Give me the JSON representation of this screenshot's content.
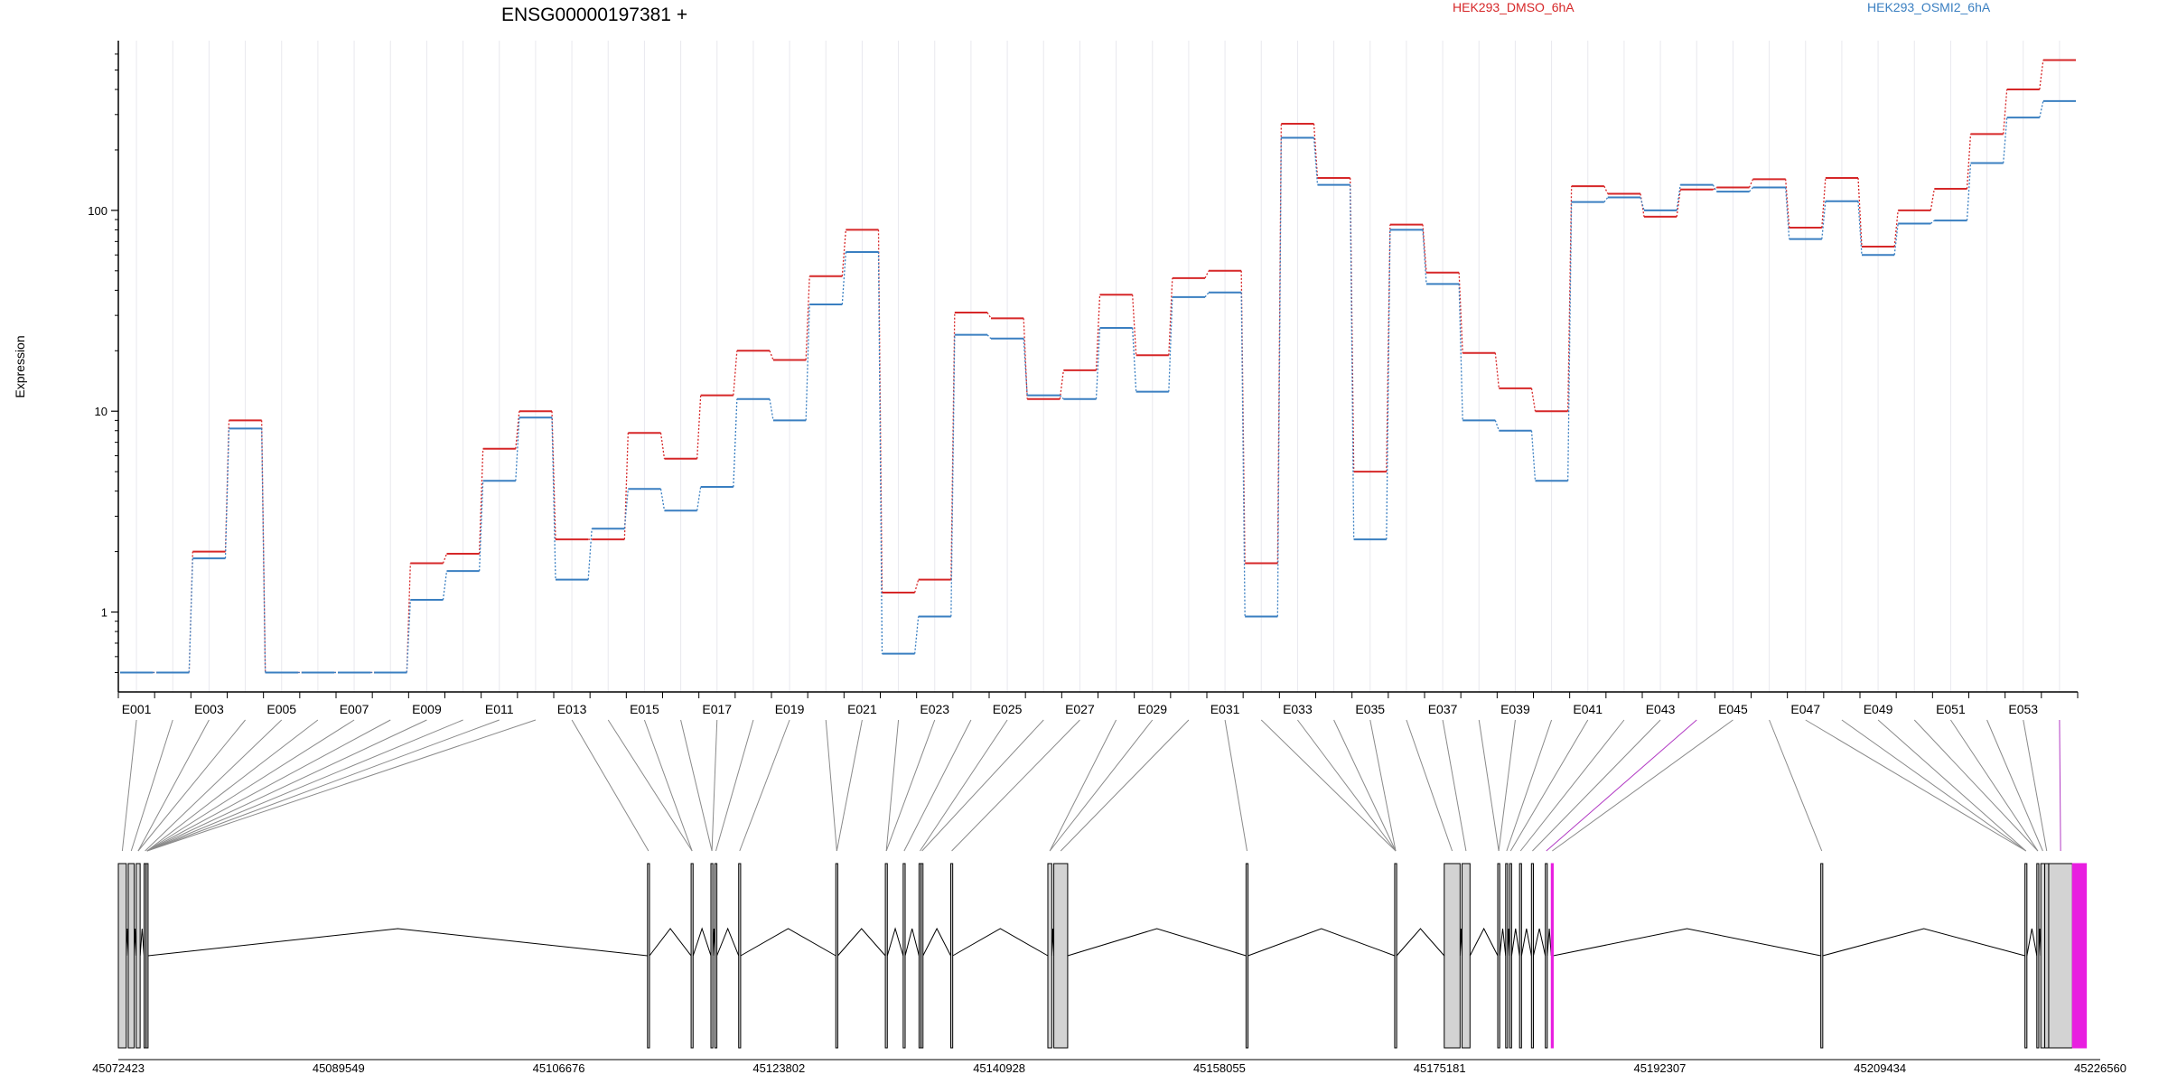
{
  "chart_data": {
    "type": "line",
    "title": "ENSG00000197381 +",
    "xlabel": "",
    "ylabel": "Expression",
    "y_scale": "log",
    "ylim": [
      0.4,
      700
    ],
    "y_ticks": [
      {
        "value": 1,
        "label": "1"
      },
      {
        "value": 10,
        "label": "10"
      },
      {
        "value": 100,
        "label": "100"
      }
    ],
    "grid": "vertical gridlines at each exon",
    "legend": "top-right, colored text",
    "exons": [
      "E001",
      "E002",
      "E003",
      "E004",
      "E005",
      "E006",
      "E007",
      "E008",
      "E009",
      "E010",
      "E011",
      "E012",
      "E013",
      "E014",
      "E015",
      "E016",
      "E017",
      "E018",
      "E019",
      "E020",
      "E021",
      "E022",
      "E023",
      "E024",
      "E025",
      "E026",
      "E027",
      "E028",
      "E029",
      "E030",
      "E031",
      "E032",
      "E033",
      "E034",
      "E035",
      "E036",
      "E037",
      "E038",
      "E039",
      "E040",
      "E041",
      "E042",
      "E043",
      "E044",
      "E045",
      "E046",
      "E047",
      "E048",
      "E049",
      "E050",
      "E051",
      "E052",
      "E053",
      "E054"
    ],
    "exon_labels": [
      "E001",
      "E003",
      "E005",
      "E007",
      "E009",
      "E011",
      "E013",
      "E015",
      "E017",
      "E019",
      "E021",
      "E023",
      "E025",
      "E027",
      "E029",
      "E031",
      "E033",
      "E035",
      "E037",
      "E039",
      "E041",
      "E043",
      "E045",
      "E047",
      "E049",
      "E051",
      "E053"
    ],
    "series": [
      {
        "name": "HEK293_DMSO_6hA",
        "color": "#d62728",
        "values": [
          0.5,
          0.5,
          2.0,
          9.0,
          0.5,
          0.5,
          0.5,
          0.5,
          1.75,
          1.95,
          6.5,
          10.0,
          2.3,
          2.3,
          7.8,
          5.8,
          12.0,
          20.0,
          18.0,
          47.0,
          80.0,
          1.25,
          1.45,
          31.0,
          29.0,
          11.5,
          16.0,
          38.0,
          19.0,
          46.0,
          50.0,
          1.75,
          270.0,
          145.0,
          5.0,
          85.0,
          49.0,
          19.5,
          13.0,
          10.0,
          132.0,
          121.0,
          93.0,
          127.0,
          130.0,
          143.0,
          82.0,
          145.0,
          66.0,
          100.0,
          128.0,
          240.0,
          400.0,
          560.0
        ]
      },
      {
        "name": "HEK293_OSMI2_6hA",
        "color": "#3a7fc1",
        "values": [
          0.5,
          0.5,
          1.85,
          8.2,
          0.5,
          0.5,
          0.5,
          0.5,
          1.15,
          1.6,
          4.5,
          9.3,
          1.45,
          2.6,
          4.1,
          3.2,
          4.2,
          11.5,
          9.0,
          34.0,
          62.0,
          0.62,
          0.95,
          24.0,
          23.0,
          12.0,
          11.5,
          26.0,
          12.5,
          37.0,
          39.0,
          0.95,
          230.0,
          134.0,
          2.3,
          80.0,
          43.0,
          9.0,
          8.0,
          4.5,
          110.0,
          116.0,
          100.0,
          134.0,
          124.0,
          130.0,
          72.0,
          111.0,
          60.0,
          86.0,
          89.0,
          172.0,
          290.0,
          350.0
        ]
      }
    ],
    "gene_model": {
      "coordinate_ticks": [
        "45072423",
        "45089549",
        "45106676",
        "45123802",
        "45140928",
        "45158055",
        "45175181",
        "45192307",
        "45209434",
        "45226560"
      ],
      "exon_blocks": [
        {
          "start": 0.0,
          "end": 0.004
        },
        {
          "start": 0.005,
          "end": 0.008
        },
        {
          "start": 0.009,
          "end": 0.011
        },
        {
          "start": 0.013,
          "end": 0.014
        },
        {
          "start": 0.014,
          "end": 0.015
        },
        {
          "start": 0.267,
          "end": 0.268
        },
        {
          "start": 0.289,
          "end": 0.29
        },
        {
          "start": 0.299,
          "end": 0.3
        },
        {
          "start": 0.301,
          "end": 0.302
        },
        {
          "start": 0.313,
          "end": 0.314
        },
        {
          "start": 0.362,
          "end": 0.363
        },
        {
          "start": 0.387,
          "end": 0.388
        },
        {
          "start": 0.396,
          "end": 0.397
        },
        {
          "start": 0.404,
          "end": 0.405
        },
        {
          "start": 0.405,
          "end": 0.406
        },
        {
          "start": 0.42,
          "end": 0.421
        },
        {
          "start": 0.469,
          "end": 0.471
        },
        {
          "start": 0.472,
          "end": 0.479
        },
        {
          "start": 0.569,
          "end": 0.57
        },
        {
          "start": 0.644,
          "end": 0.645
        },
        {
          "start": 0.669,
          "end": 0.677
        },
        {
          "start": 0.678,
          "end": 0.682
        },
        {
          "start": 0.696,
          "end": 0.697
        },
        {
          "start": 0.7,
          "end": 0.701
        },
        {
          "start": 0.702,
          "end": 0.703
        },
        {
          "start": 0.707,
          "end": 0.708
        },
        {
          "start": 0.713,
          "end": 0.714
        },
        {
          "start": 0.72,
          "end": 0.721
        },
        {
          "start": 0.723,
          "end": 0.724,
          "highlight": true
        },
        {
          "start": 0.859,
          "end": 0.86
        },
        {
          "start": 0.962,
          "end": 0.963
        },
        {
          "start": 0.968,
          "end": 0.969
        },
        {
          "start": 0.97,
          "end": 0.972
        },
        {
          "start": 0.972,
          "end": 0.974
        },
        {
          "start": 0.974,
          "end": 0.986
        },
        {
          "start": 0.986,
          "end": 0.993,
          "highlight": true
        }
      ],
      "exon_map": [
        0,
        1,
        2,
        2,
        3,
        4,
        4,
        4,
        4,
        4,
        4,
        4,
        5,
        6,
        6,
        7,
        7,
        8,
        9,
        10,
        10,
        11,
        11,
        12,
        13,
        14,
        15,
        16,
        16,
        17,
        18,
        19,
        19,
        19,
        19,
        20,
        21,
        22,
        22,
        23,
        24,
        25,
        26,
        27,
        28,
        29,
        30,
        30,
        30,
        31,
        31,
        32,
        33,
        34
      ],
      "highlight_color": "#e81ee0",
      "exon_fill": "#d3d3d3",
      "connector_highlight": [
        43,
        53
      ]
    }
  }
}
